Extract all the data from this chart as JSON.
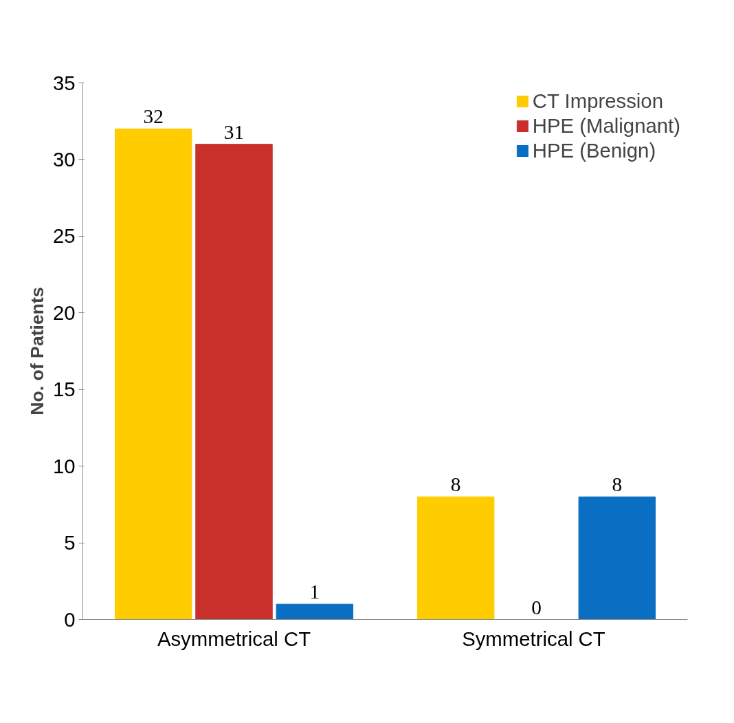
{
  "chart_data": {
    "type": "bar",
    "ylabel": "No. of Patients",
    "categories": [
      "Asymmetrical CT",
      "Symmetrical  CT"
    ],
    "series": [
      {
        "name": "CT Impression",
        "color": "#ffcc00",
        "values": [
          32,
          8
        ]
      },
      {
        "name": "HPE (Malignant)",
        "color": "#c9302c",
        "values": [
          31,
          0
        ]
      },
      {
        "name": "HPE (Benign)",
        "color": "#0a6fc2",
        "values": [
          1,
          8
        ]
      }
    ],
    "ylim": [
      0,
      35
    ],
    "yticks": [
      0,
      5,
      10,
      15,
      20,
      25,
      30,
      35
    ],
    "data_labels": true,
    "grid": false,
    "legend": "top right"
  }
}
